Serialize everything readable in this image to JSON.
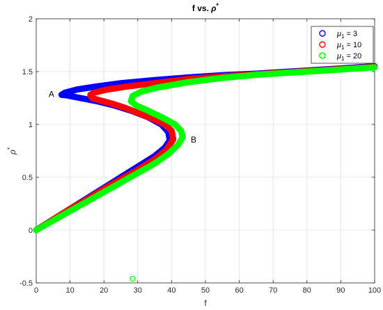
{
  "chart_data": {
    "type": "scatter",
    "title": "f vs. ρ*",
    "xlabel": "f",
    "ylabel": "ρ*",
    "xlim": [
      0,
      100
    ],
    "ylim": [
      -0.5,
      2
    ],
    "x_ticks": [
      "0",
      "10",
      "20",
      "30",
      "40",
      "50",
      "60",
      "70",
      "80",
      "90",
      "100"
    ],
    "y_ticks": [
      "-0.5",
      "0",
      "0.5",
      "1",
      "1.5",
      "2"
    ],
    "grid": true,
    "legend_position": "top-right",
    "annotations": [
      {
        "text": "A",
        "x": 4.5,
        "y": 1.26
      },
      {
        "text": "B",
        "x": 46.5,
        "y": 0.83
      }
    ],
    "series": [
      {
        "name": "μ1 = 3",
        "legend_symbol": "μ",
        "legend_sub": "1",
        "legend_value": " = 3",
        "color": "#0000ff",
        "x": [
          0,
          5,
          10,
          15,
          20,
          25,
          30,
          35,
          38,
          39.5,
          39.0,
          37,
          33,
          28,
          23,
          18,
          13,
          9,
          7.5,
          8.5,
          12,
          18,
          25,
          35,
          45,
          55,
          65,
          75,
          85,
          95,
          100
        ],
        "y": [
          0.0,
          0.1,
          0.2,
          0.3,
          0.4,
          0.5,
          0.6,
          0.7,
          0.78,
          0.85,
          0.93,
          1.0,
          1.07,
          1.13,
          1.18,
          1.22,
          1.25,
          1.275,
          1.28,
          1.3,
          1.33,
          1.36,
          1.39,
          1.42,
          1.445,
          1.465,
          1.48,
          1.5,
          1.52,
          1.54,
          1.55
        ]
      },
      {
        "name": "μ1 = 10",
        "legend_symbol": "μ",
        "legend_sub": "1",
        "legend_value": " = 10",
        "color": "#ff0000",
        "x": [
          0,
          5,
          10,
          15,
          20,
          25,
          30,
          35,
          38.5,
          40.5,
          40.0,
          38,
          34,
          30,
          26,
          22,
          18.5,
          16.5,
          16.0,
          17,
          21,
          27,
          35,
          45,
          55,
          65,
          75,
          85,
          95,
          100
        ],
        "y": [
          0.0,
          0.1,
          0.2,
          0.29,
          0.39,
          0.48,
          0.57,
          0.67,
          0.76,
          0.86,
          0.94,
          1.0,
          1.06,
          1.11,
          1.16,
          1.2,
          1.23,
          1.25,
          1.28,
          1.3,
          1.33,
          1.36,
          1.39,
          1.43,
          1.455,
          1.475,
          1.495,
          1.515,
          1.535,
          1.545
        ]
      },
      {
        "name": "μ1 = 20",
        "legend_symbol": "μ",
        "legend_sub": "1",
        "legend_value": " = 20",
        "color": "#00ff00",
        "x": [
          0,
          5,
          10,
          15,
          20,
          25,
          30,
          35,
          39,
          42,
          43.3,
          42.8,
          41,
          37,
          33,
          29.5,
          28,
          28.5,
          31,
          36,
          45,
          55,
          65,
          75,
          85,
          95,
          100
        ],
        "y": [
          0.0,
          0.09,
          0.18,
          0.27,
          0.36,
          0.45,
          0.54,
          0.63,
          0.72,
          0.81,
          0.88,
          0.94,
          1.0,
          1.07,
          1.13,
          1.18,
          1.22,
          1.27,
          1.31,
          1.35,
          1.4,
          1.44,
          1.47,
          1.49,
          1.51,
          1.53,
          1.54
        ]
      }
    ],
    "outlier_points": [
      {
        "x": 28.5,
        "y": -0.46,
        "color": "#00ff00"
      }
    ]
  }
}
